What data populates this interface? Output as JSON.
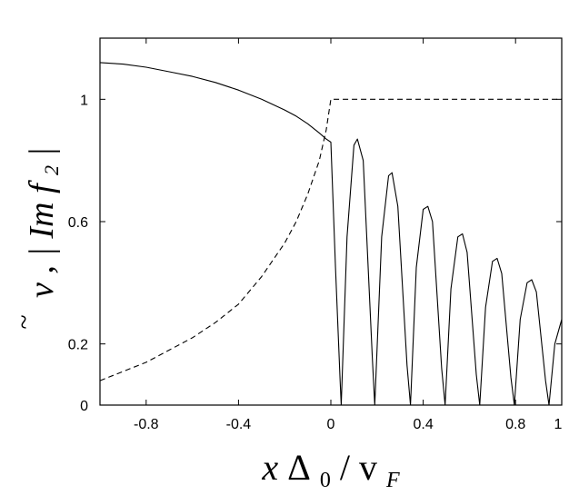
{
  "chart_data": {
    "type": "line",
    "title": "",
    "xlabel": {
      "x": "x",
      "delta": "Δ",
      "delta_sub": "0",
      "slash": "/",
      "v": "v",
      "v_sub": "F"
    },
    "ylabel": {
      "nu": "ν",
      "tilde": "~",
      "sep": ", |",
      "im": "Im",
      "f": "f",
      "f_sub": "2",
      "close": "|"
    },
    "xlim": [
      -1,
      1
    ],
    "ylim": [
      0,
      1.2
    ],
    "xticks": [
      {
        "value": -0.8,
        "label": "-0.8"
      },
      {
        "value": -0.4,
        "label": "-0.4"
      },
      {
        "value": 0,
        "label": "0"
      },
      {
        "value": 0.4,
        "label": "0.4"
      },
      {
        "value": 0.8,
        "label": "0.8"
      },
      {
        "value": 1,
        "label": "1"
      }
    ],
    "yticks": [
      {
        "value": 0,
        "label": "0"
      },
      {
        "value": 0.2,
        "label": "0.2"
      },
      {
        "value": 0.6,
        "label": "0.6"
      },
      {
        "value": 1,
        "label": "1"
      }
    ],
    "grid": false,
    "legend": "none",
    "series": [
      {
        "style": "solid",
        "color": "#000000",
        "x": [
          -1,
          -0.9,
          -0.8,
          -0.7,
          -0.6,
          -0.5,
          -0.4,
          -0.3,
          -0.2,
          -0.15,
          -0.1,
          -0.05,
          -0.02,
          0,
          0.02,
          0.04,
          0.045,
          0.07,
          0.1,
          0.115,
          0.14,
          0.18,
          0.19,
          0.22,
          0.25,
          0.265,
          0.29,
          0.33,
          0.345,
          0.37,
          0.4,
          0.42,
          0.44,
          0.48,
          0.495,
          0.52,
          0.55,
          0.57,
          0.59,
          0.63,
          0.645,
          0.67,
          0.7,
          0.72,
          0.74,
          0.78,
          0.795,
          0.82,
          0.85,
          0.87,
          0.89,
          0.93,
          0.945,
          0.97,
          1
        ],
        "y": [
          1.12,
          1.115,
          1.105,
          1.09,
          1.075,
          1.055,
          1.03,
          1.0,
          0.965,
          0.945,
          0.92,
          0.89,
          0.87,
          0.86,
          0.45,
          0.08,
          0,
          0.55,
          0.85,
          0.87,
          0.8,
          0.15,
          0,
          0.55,
          0.75,
          0.76,
          0.65,
          0.13,
          0,
          0.45,
          0.64,
          0.65,
          0.6,
          0.12,
          0,
          0.38,
          0.55,
          0.56,
          0.5,
          0.1,
          0,
          0.32,
          0.47,
          0.48,
          0.43,
          0.09,
          0,
          0.28,
          0.4,
          0.41,
          0.37,
          0.08,
          0,
          0.2,
          0.28
        ]
      },
      {
        "style": "dashed",
        "color": "#000000",
        "x": [
          -1,
          -0.9,
          -0.8,
          -0.7,
          -0.6,
          -0.5,
          -0.4,
          -0.3,
          -0.2,
          -0.15,
          -0.1,
          -0.05,
          -0.02,
          0,
          0.1,
          0.2,
          0.4,
          0.6,
          0.8,
          1
        ],
        "y": [
          0.08,
          0.11,
          0.14,
          0.18,
          0.22,
          0.27,
          0.33,
          0.42,
          0.53,
          0.6,
          0.69,
          0.8,
          0.9,
          1,
          1,
          1,
          1,
          1,
          1,
          1
        ]
      }
    ]
  }
}
